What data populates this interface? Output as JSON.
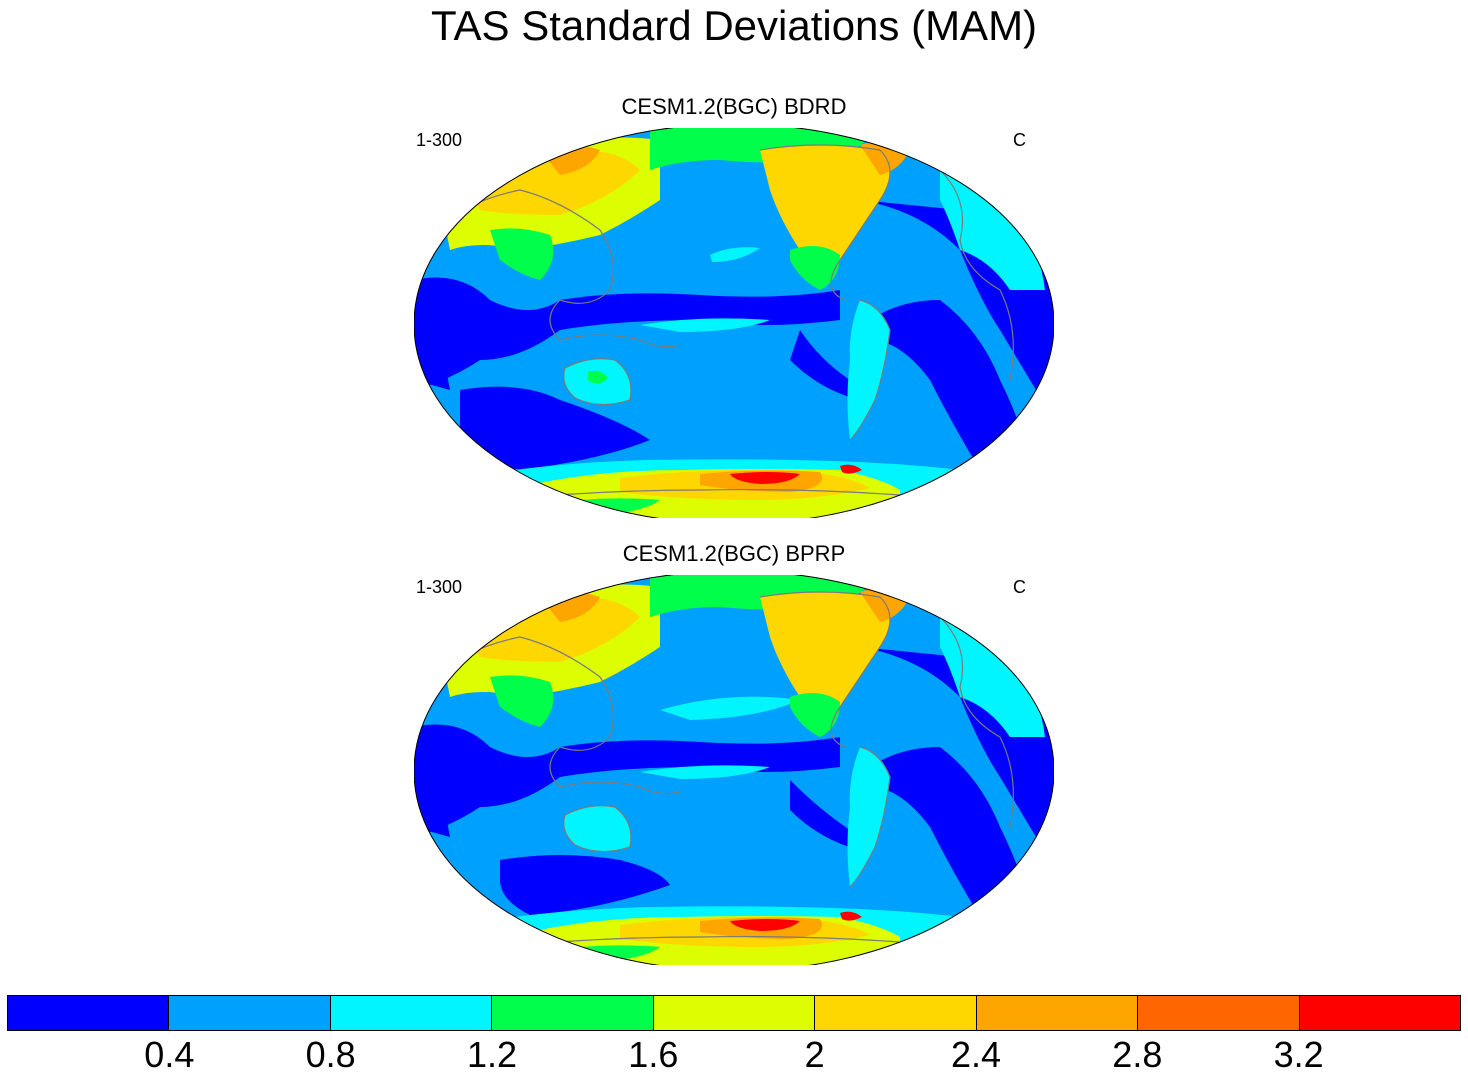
{
  "title": "TAS Standard Deviations (MAM)",
  "panels": [
    {
      "title": "CESM1.2(BGC) BDRD",
      "left_label": "1-300",
      "right_label": "C"
    },
    {
      "title": "CESM1.2(BGC) BPRP",
      "left_label": "1-300",
      "right_label": "C"
    }
  ],
  "colorbar": {
    "colors": [
      "#0000ff",
      "#00a0ff",
      "#00f5ff",
      "#00ff4a",
      "#dcfe00",
      "#ffd700",
      "#ffa500",
      "#ff6600",
      "#ff0000"
    ],
    "tick_labels": [
      "0.4",
      "0.8",
      "1.2",
      "1.6",
      "2",
      "2.4",
      "2.8",
      "3.2"
    ]
  },
  "colors": {
    "coastline": "#7a7a7a"
  }
}
